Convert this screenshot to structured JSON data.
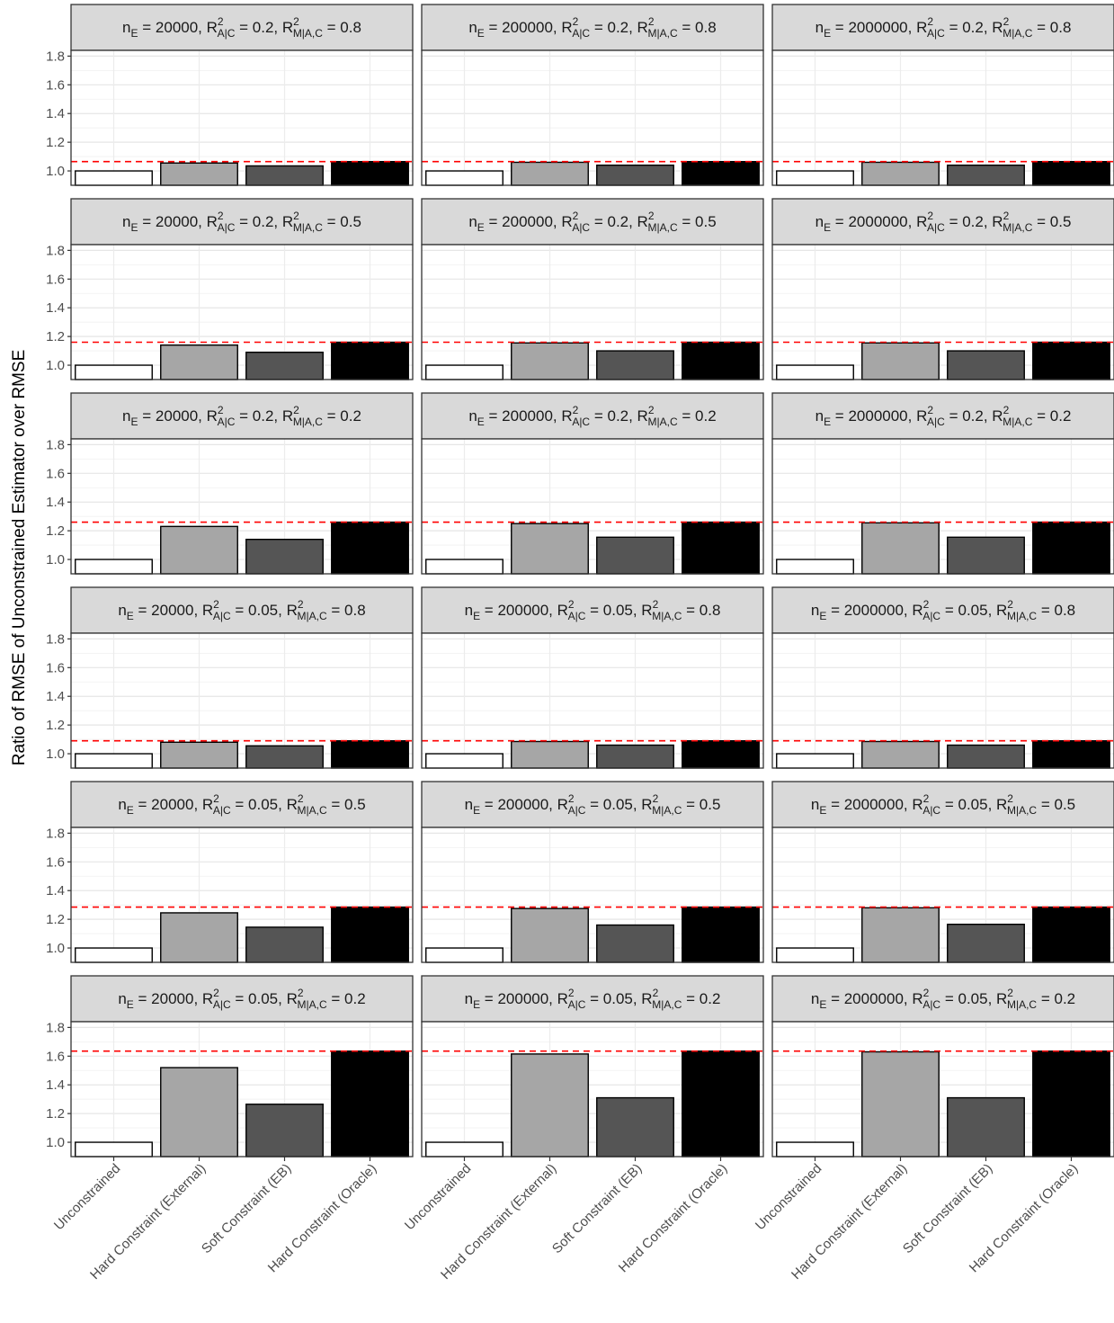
{
  "chart_data": {
    "type": "bar",
    "ylabel": "Ratio of RMSE of Unconstrained Estimator over RMSE",
    "xlabel": "",
    "categories": [
      "Unconstrained",
      "Hard Constraint (External)",
      "Soft Constraint (EB)",
      "Hard Constraint (Oracle)"
    ],
    "bar_colors": [
      "#ffffff",
      "#a6a6a6",
      "#555555",
      "#000000"
    ],
    "reference_line_color": "#ff0000",
    "strip_fill": "#d9d9d9",
    "ylim": [
      0.9,
      1.84
    ],
    "yticks": [
      "1.0",
      "1.2",
      "1.4",
      "1.6",
      "1.8"
    ],
    "columns": [
      {
        "n_E": "20000"
      },
      {
        "n_E": "200000"
      },
      {
        "n_E": "2000000"
      }
    ],
    "rows": [
      {
        "R2_AC": "0.2",
        "R2_MAC": "0.8",
        "ref": 1.065,
        "values": [
          [
            1.0,
            1.055,
            1.035,
            1.065
          ],
          [
            1.0,
            1.06,
            1.04,
            1.065
          ],
          [
            1.0,
            1.06,
            1.04,
            1.065
          ]
        ]
      },
      {
        "R2_AC": "0.2",
        "R2_MAC": "0.5",
        "ref": 1.16,
        "values": [
          [
            1.0,
            1.14,
            1.09,
            1.16
          ],
          [
            1.0,
            1.155,
            1.1,
            1.16
          ],
          [
            1.0,
            1.155,
            1.1,
            1.16
          ]
        ]
      },
      {
        "R2_AC": "0.2",
        "R2_MAC": "0.2",
        "ref": 1.26,
        "values": [
          [
            1.0,
            1.23,
            1.14,
            1.26
          ],
          [
            1.0,
            1.25,
            1.155,
            1.26
          ],
          [
            1.0,
            1.255,
            1.155,
            1.26
          ]
        ]
      },
      {
        "R2_AC": "0.05",
        "R2_MAC": "0.8",
        "ref": 1.09,
        "values": [
          [
            1.0,
            1.08,
            1.055,
            1.09
          ],
          [
            1.0,
            1.085,
            1.06,
            1.09
          ],
          [
            1.0,
            1.085,
            1.06,
            1.09
          ]
        ]
      },
      {
        "R2_AC": "0.05",
        "R2_MAC": "0.5",
        "ref": 1.285,
        "values": [
          [
            1.0,
            1.245,
            1.145,
            1.285
          ],
          [
            1.0,
            1.275,
            1.16,
            1.285
          ],
          [
            1.0,
            1.28,
            1.165,
            1.285
          ]
        ]
      },
      {
        "R2_AC": "0.05",
        "R2_MAC": "0.2",
        "ref": 1.635,
        "values": [
          [
            1.0,
            1.52,
            1.265,
            1.635
          ],
          [
            1.0,
            1.615,
            1.31,
            1.635
          ],
          [
            1.0,
            1.63,
            1.31,
            1.635
          ]
        ]
      }
    ]
  }
}
